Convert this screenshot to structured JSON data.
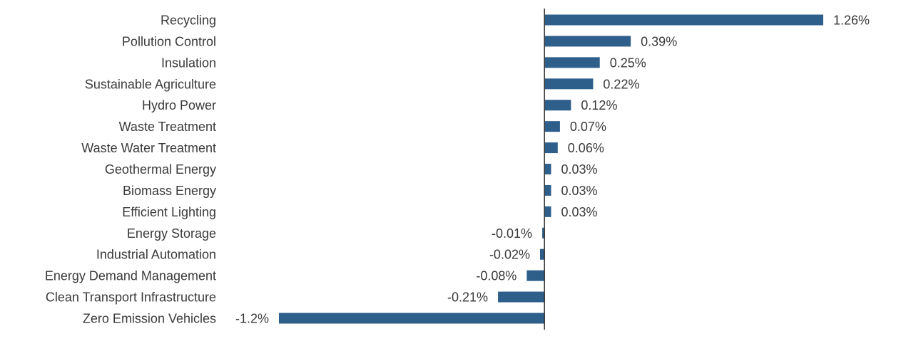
{
  "chart_data": {
    "type": "bar",
    "orientation": "horizontal",
    "title": "",
    "xlabel": "",
    "ylabel": "",
    "grid": false,
    "legend": "none",
    "xlim": [
      -1.2,
      1.26
    ],
    "bar_color": "#2e5f8a",
    "axis_color": "#333333",
    "text_color": "#3a3a3a",
    "categories": [
      "Recycling",
      "Pollution Control",
      "Insulation",
      "Sustainable Agriculture",
      "Hydro Power",
      "Waste Treatment",
      "Waste Water Treatment",
      "Geothermal Energy",
      "Biomass Energy",
      "Efficient Lighting",
      "Energy Storage",
      "Industrial Automation",
      "Energy Demand Management",
      "Clean Transport Infrastructure",
      "Zero Emission Vehicles"
    ],
    "values": [
      1.26,
      0.39,
      0.25,
      0.22,
      0.12,
      0.07,
      0.06,
      0.03,
      0.03,
      0.03,
      -0.01,
      -0.02,
      -0.08,
      -0.21,
      -1.2
    ],
    "value_labels": [
      "1.26%",
      "0.39%",
      "0.25%",
      "0.22%",
      "0.12%",
      "0.07%",
      "0.06%",
      "0.03%",
      "0.03%",
      "0.03%",
      "-0.01%",
      "-0.02%",
      "-0.08%",
      "-0.21%",
      "-1.2%"
    ]
  }
}
